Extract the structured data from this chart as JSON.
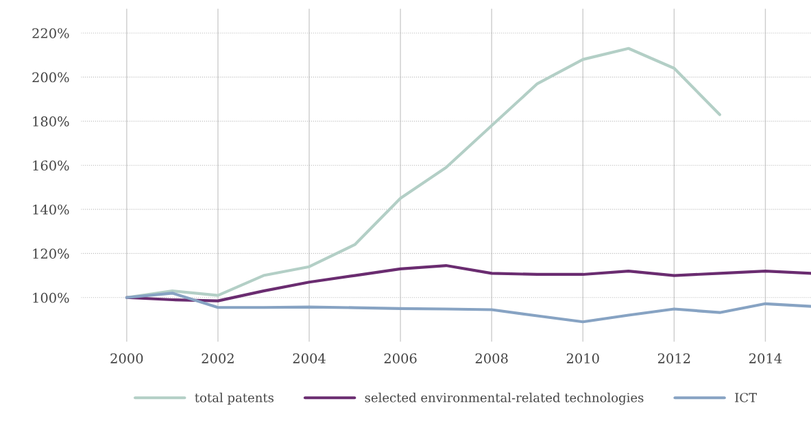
{
  "chart_data": {
    "type": "line",
    "x": [
      2000,
      2001,
      2002,
      2003,
      2004,
      2005,
      2006,
      2007,
      2008,
      2009,
      2010,
      2011,
      2012,
      2013,
      2014,
      2015
    ],
    "series": [
      {
        "name": "total patents",
        "color": "#b3cfc6",
        "values": [
          100,
          103,
          101,
          110,
          114,
          124,
          145,
          159,
          178,
          197,
          208,
          213,
          204,
          183,
          null,
          null
        ]
      },
      {
        "name": "selected environmental-related technologies",
        "color": "#6a2c70",
        "values": [
          100,
          99,
          98.5,
          103,
          107,
          110,
          113,
          114.5,
          111,
          110.5,
          110.5,
          112,
          110,
          111,
          112,
          111
        ]
      },
      {
        "name": "ICT",
        "color": "#87a3c3",
        "values": [
          100,
          102,
          95.5,
          95.5,
          95.7,
          95.4,
          95,
          94.8,
          94.5,
          91.7,
          89,
          92,
          94.8,
          93.2,
          97.2,
          96
        ]
      }
    ],
    "xlim": [
      1999,
      2015
    ],
    "xticks": [
      2000,
      2002,
      2004,
      2006,
      2008,
      2010,
      2012,
      2014
    ],
    "ylim": [
      80,
      231
    ],
    "yticks": [
      {
        "value": 100,
        "label": "100%"
      },
      {
        "value": 120,
        "label": "120%"
      },
      {
        "value": 140,
        "label": "140%"
      },
      {
        "value": 160,
        "label": "160%"
      },
      {
        "value": 180,
        "label": "180%"
      },
      {
        "value": 200,
        "label": "200%"
      },
      {
        "value": 220,
        "label": "220%"
      }
    ],
    "grid": true,
    "legend": "bottom",
    "marker": "none",
    "line_style": "solid"
  }
}
